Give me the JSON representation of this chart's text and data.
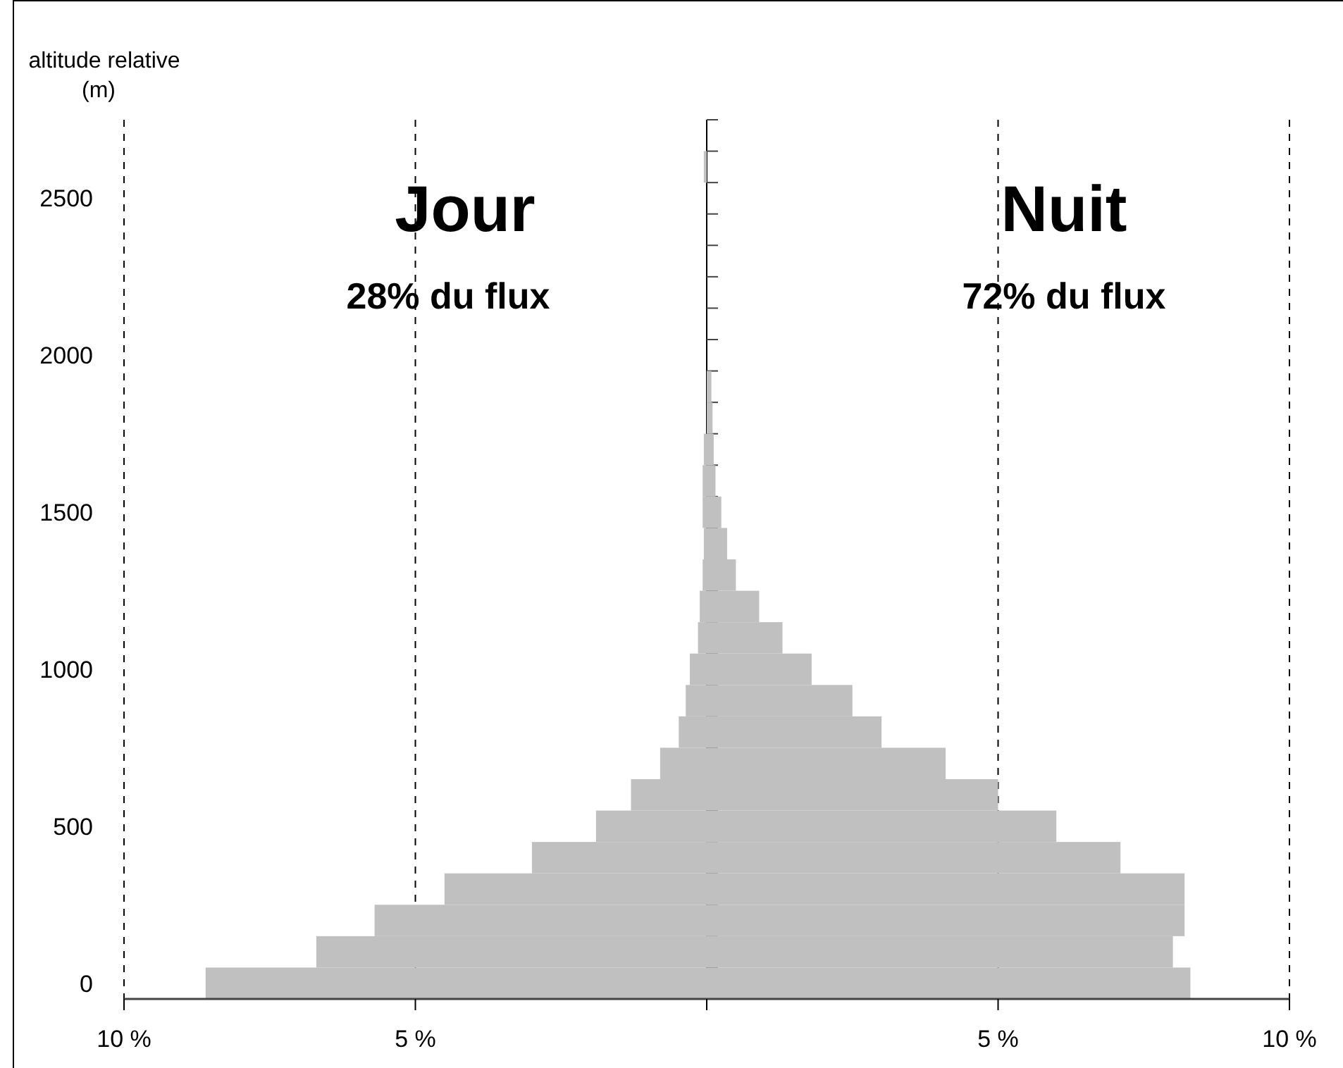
{
  "chart_data": {
    "type": "bar",
    "orientation": "horizontal",
    "stacked": true,
    "ylabel": "altitude relative (m)",
    "categories": [
      null,
      null,
      "2500",
      null,
      null,
      null,
      null,
      "2000",
      null,
      null,
      null,
      null,
      "1500",
      null,
      null,
      null,
      null,
      "1000",
      null,
      null,
      null,
      null,
      "500",
      null,
      null,
      null,
      null,
      "0"
    ],
    "series": [
      {
        "color": "#c0c0c0",
        "values": [
          0,
          -0.05,
          0,
          0,
          0,
          0,
          0,
          0,
          0,
          0,
          -0.05,
          -0.07,
          -0.07,
          -0.05,
          -0.07,
          -0.12,
          -0.15,
          -0.29,
          -0.36,
          -0.48,
          -0.8,
          -1.3,
          -1.9,
          -3.0,
          -4.5,
          -5.7,
          -6.7,
          -8.6
        ]
      },
      {
        "color": "#c0c0c0",
        "values": [
          0,
          0,
          0,
          0,
          0,
          0,
          0,
          0,
          0.08,
          0.1,
          0.12,
          0.15,
          0.25,
          0.35,
          0.5,
          0.9,
          1.3,
          1.8,
          2.5,
          3.0,
          4.1,
          5.0,
          6.0,
          7.1,
          8.2,
          8.2,
          8.0,
          8.3
        ]
      }
    ],
    "xlim": [
      -10,
      10
    ],
    "xticks": [
      {
        "value": -10,
        "label": "10 %"
      },
      {
        "value": -5,
        "label": "5 %"
      },
      {
        "value": 0,
        "label": null
      },
      {
        "value": 5,
        "label": "5 %"
      },
      {
        "value": 10,
        "label": "10 %"
      }
    ],
    "grid": "x",
    "line_style": "dashed",
    "annotations": [
      "Jour",
      "28% du flux",
      "Nuit",
      "72% du flux"
    ]
  }
}
